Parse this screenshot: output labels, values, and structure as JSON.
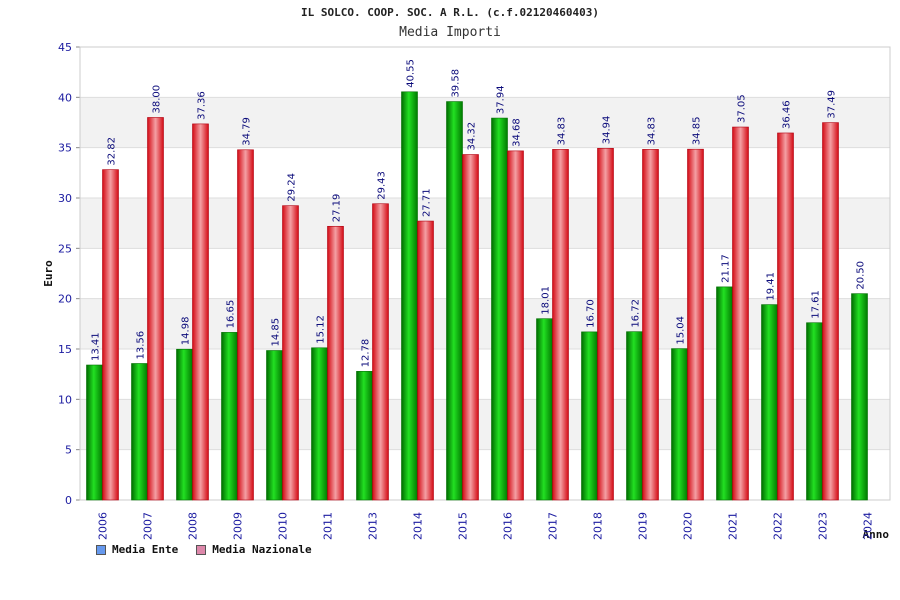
{
  "chart_data": {
    "type": "bar",
    "title": "IL SOLCO. COOP. SOC. A R.L. (c.f.02120460403)",
    "subtitle": "Media Importi",
    "xlabel": "Anno",
    "ylabel": "Euro",
    "ylim": [
      0,
      45
    ],
    "yticks": [
      0,
      5,
      10,
      15,
      20,
      25,
      30,
      35,
      40,
      45
    ],
    "grid": true,
    "legend_position": "bottom-left",
    "categories": [
      "2006",
      "2007",
      "2008",
      "2009",
      "2010",
      "2011",
      "2013",
      "2014",
      "2015",
      "2016",
      "2017",
      "2018",
      "2019",
      "2020",
      "2021",
      "2022",
      "2023",
      "2024"
    ],
    "series": [
      {
        "name": "Media Ente",
        "color": "#00b000",
        "legend_color": "#6699ee",
        "values": [
          13.41,
          13.56,
          14.98,
          16.65,
          14.85,
          15.12,
          12.78,
          40.55,
          39.58,
          37.94,
          18.01,
          16.7,
          16.72,
          15.04,
          21.17,
          19.41,
          17.61,
          20.5
        ],
        "labels": [
          "13.41",
          "13.56",
          "14.98",
          "16.65",
          "14.85",
          "15.12",
          "12.78",
          "40.55",
          "39.58",
          "37.94",
          "18.01",
          "16.70",
          "16.72",
          "15.04",
          "21.17",
          "19.41",
          "17.61",
          "20.50"
        ]
      },
      {
        "name": "Media Nazionale",
        "color": "#e8202a",
        "legend_color": "#dd88aa",
        "values": [
          32.82,
          38.0,
          37.36,
          34.79,
          29.24,
          27.19,
          29.43,
          27.71,
          34.32,
          34.68,
          34.83,
          34.94,
          34.83,
          34.85,
          37.05,
          36.46,
          37.49,
          null
        ],
        "labels": [
          "32.82",
          "38.00",
          "37.36",
          "34.79",
          "29.24",
          "27.19",
          "29.43",
          "27.71",
          "34.32",
          "34.68",
          "34.83",
          "34.94",
          "34.83",
          "34.85",
          "37.05",
          "36.46",
          "37.49",
          null
        ]
      }
    ]
  }
}
